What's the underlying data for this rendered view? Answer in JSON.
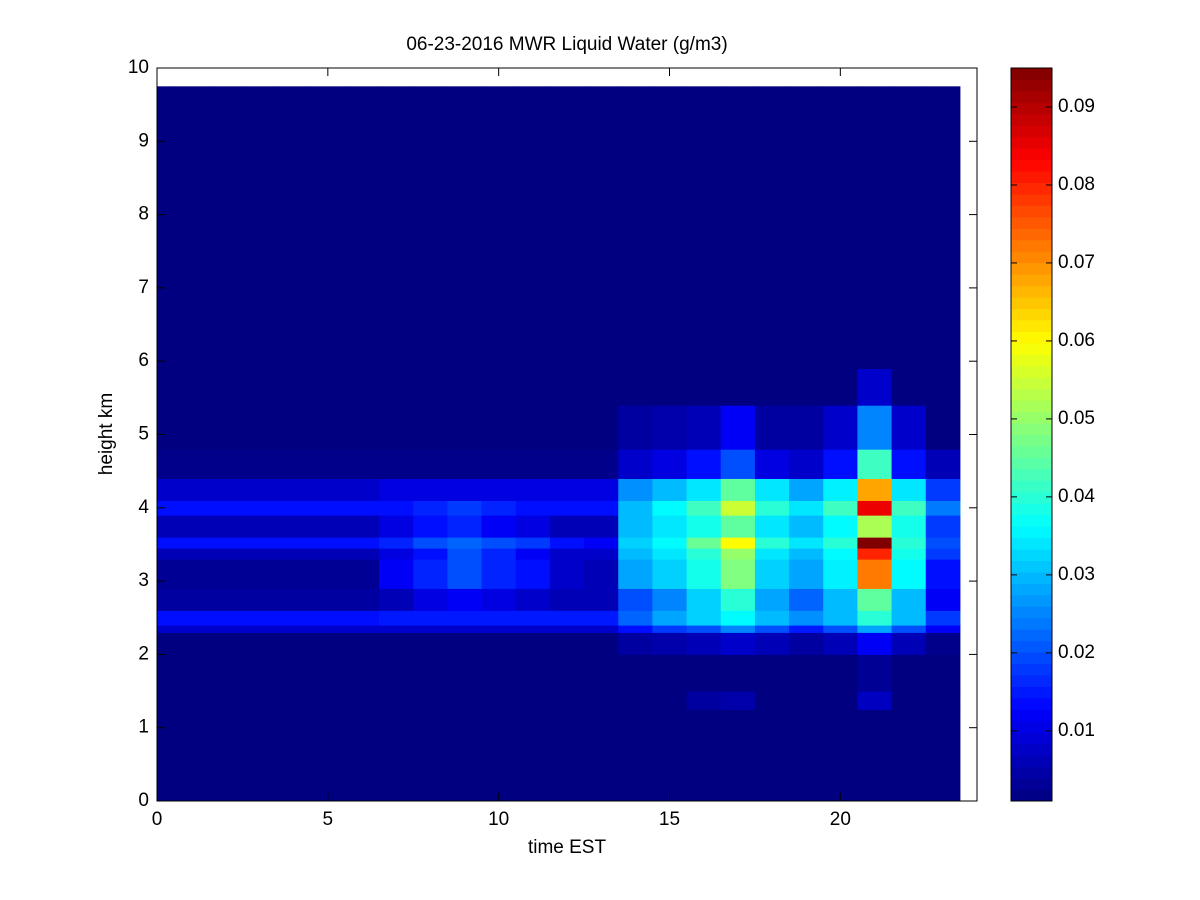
{
  "chart_data": {
    "type": "heatmap",
    "title": "06-23-2016 MWR Liquid Water (g/m3)",
    "x_label": "time EST",
    "y_label": "height km",
    "xlim": [
      0,
      24
    ],
    "ylim": [
      0,
      10
    ],
    "xticks": [
      0,
      5,
      10,
      15,
      20
    ],
    "yticks": [
      0,
      1,
      2,
      3,
      4,
      5,
      6,
      7,
      8,
      9,
      10
    ],
    "x_edges": [
      0,
      0.5,
      1.5,
      2.5,
      3.5,
      4.5,
      5.5,
      6.5,
      7.5,
      8.5,
      9.5,
      10.5,
      11.5,
      12.5,
      13.5,
      14.5,
      15.5,
      16.5,
      17.5,
      18.5,
      19.5,
      20.5,
      21.5,
      22.5,
      23.5
    ],
    "y_edges": [
      0,
      1.25,
      1.5,
      2.0,
      2.3,
      2.4,
      2.6,
      2.9,
      3.3,
      3.45,
      3.6,
      3.9,
      4.1,
      4.4,
      4.8,
      5.4,
      5.9,
      9.75
    ],
    "z": [
      [
        0.001,
        0.001,
        0.001,
        0.001,
        0.001,
        0.001,
        0.001,
        0.001,
        0.001,
        0.001,
        0.001,
        0.001,
        0.001,
        0.001,
        0.001,
        0.001,
        0.001,
        0.001,
        0.001,
        0.001,
        0.001,
        0.001,
        0.001,
        0.001
      ],
      [
        0.001,
        0.001,
        0.001,
        0.001,
        0.001,
        0.001,
        0.001,
        0.001,
        0.001,
        0.001,
        0.001,
        0.001,
        0.001,
        0.001,
        0.001,
        0.001,
        0.004,
        0.005,
        0.001,
        0.001,
        0.001,
        0.007,
        0.001,
        0.001
      ],
      [
        0.001,
        0.001,
        0.001,
        0.001,
        0.001,
        0.001,
        0.001,
        0.001,
        0.001,
        0.001,
        0.001,
        0.001,
        0.001,
        0.001,
        0.001,
        0.001,
        0.001,
        0.001,
        0.001,
        0.001,
        0.001,
        0.003,
        0.001,
        0.001
      ],
      [
        0.001,
        0.001,
        0.001,
        0.001,
        0.001,
        0.001,
        0.001,
        0.001,
        0.001,
        0.001,
        0.001,
        0.001,
        0.001,
        0.001,
        0.004,
        0.005,
        0.006,
        0.008,
        0.006,
        0.004,
        0.006,
        0.012,
        0.006,
        0.002
      ],
      [
        0.008,
        0.008,
        0.008,
        0.008,
        0.008,
        0.008,
        0.008,
        0.008,
        0.008,
        0.008,
        0.008,
        0.008,
        0.008,
        0.008,
        0.014,
        0.018,
        0.02,
        0.025,
        0.02,
        0.015,
        0.02,
        0.028,
        0.02,
        0.012
      ],
      [
        0.014,
        0.014,
        0.014,
        0.014,
        0.014,
        0.014,
        0.014,
        0.015,
        0.015,
        0.015,
        0.015,
        0.015,
        0.015,
        0.015,
        0.022,
        0.028,
        0.032,
        0.036,
        0.03,
        0.026,
        0.03,
        0.04,
        0.03,
        0.018
      ],
      [
        0.004,
        0.004,
        0.004,
        0.004,
        0.004,
        0.004,
        0.004,
        0.006,
        0.01,
        0.012,
        0.01,
        0.008,
        0.006,
        0.006,
        0.02,
        0.025,
        0.032,
        0.04,
        0.028,
        0.022,
        0.03,
        0.045,
        0.03,
        0.012
      ],
      [
        0.003,
        0.003,
        0.003,
        0.003,
        0.003,
        0.003,
        0.003,
        0.012,
        0.016,
        0.02,
        0.016,
        0.014,
        0.008,
        0.006,
        0.028,
        0.032,
        0.038,
        0.048,
        0.032,
        0.028,
        0.035,
        0.072,
        0.036,
        0.014
      ],
      [
        0.006,
        0.006,
        0.006,
        0.006,
        0.006,
        0.006,
        0.006,
        0.01,
        0.014,
        0.02,
        0.016,
        0.012,
        0.008,
        0.008,
        0.03,
        0.034,
        0.04,
        0.05,
        0.034,
        0.03,
        0.036,
        0.08,
        0.038,
        0.018
      ],
      [
        0.014,
        0.014,
        0.014,
        0.014,
        0.014,
        0.014,
        0.014,
        0.016,
        0.02,
        0.022,
        0.02,
        0.018,
        0.014,
        0.012,
        0.032,
        0.036,
        0.046,
        0.06,
        0.04,
        0.034,
        0.04,
        0.095,
        0.04,
        0.02
      ],
      [
        0.006,
        0.006,
        0.006,
        0.006,
        0.006,
        0.006,
        0.006,
        0.01,
        0.014,
        0.016,
        0.012,
        0.01,
        0.006,
        0.006,
        0.03,
        0.034,
        0.038,
        0.045,
        0.034,
        0.03,
        0.036,
        0.052,
        0.038,
        0.018
      ],
      [
        0.014,
        0.014,
        0.014,
        0.014,
        0.014,
        0.014,
        0.014,
        0.014,
        0.016,
        0.018,
        0.016,
        0.014,
        0.014,
        0.014,
        0.03,
        0.036,
        0.042,
        0.055,
        0.04,
        0.034,
        0.042,
        0.085,
        0.042,
        0.024
      ],
      [
        0.008,
        0.008,
        0.008,
        0.008,
        0.008,
        0.008,
        0.008,
        0.01,
        0.01,
        0.01,
        0.01,
        0.01,
        0.01,
        0.01,
        0.026,
        0.03,
        0.034,
        0.045,
        0.034,
        0.028,
        0.035,
        0.068,
        0.034,
        0.018
      ],
      [
        0.002,
        0.002,
        0.002,
        0.002,
        0.002,
        0.002,
        0.002,
        0.002,
        0.002,
        0.002,
        0.002,
        0.002,
        0.002,
        0.002,
        0.008,
        0.01,
        0.014,
        0.02,
        0.01,
        0.008,
        0.014,
        0.042,
        0.014,
        0.006
      ],
      [
        0.001,
        0.001,
        0.001,
        0.001,
        0.001,
        0.001,
        0.001,
        0.001,
        0.001,
        0.001,
        0.001,
        0.001,
        0.001,
        0.001,
        0.004,
        0.005,
        0.006,
        0.012,
        0.004,
        0.004,
        0.008,
        0.025,
        0.008,
        0.001
      ],
      [
        0.001,
        0.001,
        0.001,
        0.001,
        0.001,
        0.001,
        0.001,
        0.001,
        0.001,
        0.001,
        0.001,
        0.001,
        0.001,
        0.001,
        0.001,
        0.001,
        0.001,
        0.001,
        0.001,
        0.001,
        0.001,
        0.008,
        0.001,
        0.001
      ],
      [
        0.001,
        0.001,
        0.001,
        0.001,
        0.001,
        0.001,
        0.001,
        0.001,
        0.001,
        0.001,
        0.001,
        0.001,
        0.001,
        0.001,
        0.001,
        0.001,
        0.001,
        0.001,
        0.001,
        0.001,
        0.001,
        0.001,
        0.001,
        0.001
      ]
    ],
    "colormap": "jet",
    "clim": [
      0.001,
      0.095
    ],
    "cticks": [
      0.01,
      0.02,
      0.03,
      0.04,
      0.05,
      0.06,
      0.07,
      0.08,
      0.09
    ]
  }
}
